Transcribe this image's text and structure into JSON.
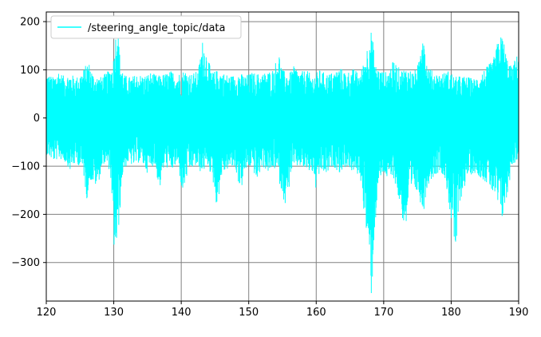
{
  "chart_data": {
    "type": "line",
    "title": "",
    "xlabel": "",
    "ylabel": "",
    "xlim": [
      120,
      190
    ],
    "ylim": [
      -380,
      220
    ],
    "x_ticks": [
      120,
      130,
      140,
      150,
      160,
      170,
      180,
      190
    ],
    "y_ticks": [
      -300,
      -200,
      -100,
      0,
      100,
      200
    ],
    "x_tick_labels": [
      "120",
      "130",
      "140",
      "150",
      "160",
      "170",
      "180",
      "190"
    ],
    "y_tick_labels": [
      "−300",
      "−200",
      "−100",
      "0",
      "100",
      "200"
    ],
    "grid": true,
    "legend_position": "top-left",
    "series": [
      {
        "name": "/steering_angle_topic/data",
        "color": "#00ffff",
        "envelope_upper": [
          [
            120.0,
            95
          ],
          [
            121.0,
            85
          ],
          [
            121.8,
            100
          ],
          [
            122.5,
            88
          ],
          [
            123.5,
            92
          ],
          [
            124.5,
            85
          ],
          [
            125.5,
            100
          ],
          [
            126.2,
            120
          ],
          [
            127.0,
            90
          ],
          [
            128.0,
            85
          ],
          [
            129.0,
            95
          ],
          [
            129.8,
            110
          ],
          [
            130.2,
            150
          ],
          [
            130.4,
            210
          ],
          [
            130.6,
            200
          ],
          [
            130.9,
            130
          ],
          [
            131.5,
            90
          ],
          [
            132.5,
            85
          ],
          [
            133.5,
            92
          ],
          [
            134.5,
            88
          ],
          [
            135.5,
            95
          ],
          [
            136.5,
            88
          ],
          [
            137.5,
            92
          ],
          [
            138.5,
            98
          ],
          [
            139.5,
            92
          ],
          [
            140.5,
            100
          ],
          [
            141.5,
            92
          ],
          [
            142.5,
            98
          ],
          [
            143.2,
            165
          ],
          [
            143.8,
            135
          ],
          [
            144.5,
            95
          ],
          [
            145.5,
            100
          ],
          [
            146.5,
            92
          ],
          [
            147.5,
            88
          ],
          [
            148.5,
            95
          ],
          [
            149.5,
            88
          ],
          [
            150.5,
            95
          ],
          [
            151.5,
            92
          ],
          [
            152.5,
            95
          ],
          [
            153.5,
            100
          ],
          [
            154.5,
            135
          ],
          [
            155.0,
            100
          ],
          [
            156.0,
            92
          ],
          [
            156.8,
            110
          ],
          [
            157.5,
            95
          ],
          [
            158.5,
            100
          ],
          [
            159.5,
            88
          ],
          [
            160.5,
            100
          ],
          [
            161.5,
            92
          ],
          [
            162.5,
            95
          ],
          [
            163.5,
            105
          ],
          [
            164.5,
            95
          ],
          [
            165.5,
            102
          ],
          [
            166.5,
            92
          ],
          [
            167.3,
            130
          ],
          [
            167.7,
            160
          ],
          [
            168.2,
            185
          ],
          [
            168.8,
            110
          ],
          [
            169.5,
            100
          ],
          [
            170.5,
            95
          ],
          [
            171.5,
            120
          ],
          [
            172.5,
            100
          ],
          [
            173.5,
            105
          ],
          [
            174.5,
            95
          ],
          [
            175.3,
            120
          ],
          [
            175.8,
            220
          ],
          [
            176.3,
            120
          ],
          [
            177.0,
            100
          ],
          [
            178.0,
            92
          ],
          [
            179.0,
            95
          ],
          [
            179.8,
            100
          ],
          [
            180.5,
            85
          ],
          [
            181.5,
            88
          ],
          [
            182.5,
            85
          ],
          [
            183.5,
            82
          ],
          [
            184.5,
            95
          ],
          [
            185.5,
            110
          ],
          [
            186.2,
            120
          ],
          [
            187.0,
            165
          ],
          [
            187.6,
            175
          ],
          [
            188.3,
            125
          ],
          [
            189.0,
            105
          ],
          [
            189.5,
            125
          ],
          [
            190.0,
            135
          ]
        ],
        "envelope_lower": [
          [
            120.0,
            -75
          ],
          [
            121.0,
            -90
          ],
          [
            122.0,
            -85
          ],
          [
            123.0,
            -95
          ],
          [
            123.5,
            -110
          ],
          [
            124.5,
            -92
          ],
          [
            125.5,
            -115
          ],
          [
            126.0,
            -170
          ],
          [
            126.5,
            -130
          ],
          [
            127.5,
            -145
          ],
          [
            128.5,
            -95
          ],
          [
            129.5,
            -110
          ],
          [
            129.9,
            -260
          ],
          [
            130.2,
            -285
          ],
          [
            130.5,
            -270
          ],
          [
            130.9,
            -200
          ],
          [
            131.3,
            -120
          ],
          [
            132.0,
            -95
          ],
          [
            133.0,
            -100
          ],
          [
            134.0,
            -90
          ],
          [
            135.0,
            -115
          ],
          [
            136.0,
            -95
          ],
          [
            136.8,
            -150
          ],
          [
            137.5,
            -100
          ],
          [
            138.5,
            -110
          ],
          [
            139.5,
            -98
          ],
          [
            140.2,
            -160
          ],
          [
            141.0,
            -115
          ],
          [
            142.0,
            -100
          ],
          [
            143.0,
            -115
          ],
          [
            144.0,
            -100
          ],
          [
            144.8,
            -140
          ],
          [
            145.3,
            -190
          ],
          [
            146.0,
            -120
          ],
          [
            147.0,
            -105
          ],
          [
            148.0,
            -105
          ],
          [
            148.8,
            -155
          ],
          [
            149.5,
            -110
          ],
          [
            150.5,
            -100
          ],
          [
            151.2,
            -135
          ],
          [
            152.0,
            -100
          ],
          [
            153.0,
            -115
          ],
          [
            154.0,
            -105
          ],
          [
            155.0,
            -160
          ],
          [
            155.6,
            -190
          ],
          [
            156.3,
            -110
          ],
          [
            157.5,
            -100
          ],
          [
            158.5,
            -110
          ],
          [
            159.5,
            -115
          ],
          [
            160.0,
            -155
          ],
          [
            160.7,
            -110
          ],
          [
            161.5,
            -120
          ],
          [
            162.5,
            -100
          ],
          [
            163.5,
            -115
          ],
          [
            164.5,
            -100
          ],
          [
            165.5,
            -115
          ],
          [
            166.5,
            -120
          ],
          [
            167.5,
            -250
          ],
          [
            167.9,
            -320
          ],
          [
            168.2,
            -378
          ],
          [
            168.6,
            -250
          ],
          [
            169.2,
            -140
          ],
          [
            170.0,
            -115
          ],
          [
            170.8,
            -135
          ],
          [
            171.5,
            -125
          ],
          [
            172.5,
            -190
          ],
          [
            173.2,
            -240
          ],
          [
            173.8,
            -175
          ],
          [
            174.5,
            -150
          ],
          [
            175.3,
            -165
          ],
          [
            175.8,
            -205
          ],
          [
            176.5,
            -140
          ],
          [
            177.5,
            -120
          ],
          [
            178.5,
            -110
          ],
          [
            179.2,
            -135
          ],
          [
            179.8,
            -195
          ],
          [
            180.3,
            -250
          ],
          [
            180.7,
            -290
          ],
          [
            181.3,
            -175
          ],
          [
            182.5,
            -120
          ],
          [
            183.5,
            -115
          ],
          [
            184.5,
            -125
          ],
          [
            185.5,
            -140
          ],
          [
            186.2,
            -160
          ],
          [
            187.0,
            -190
          ],
          [
            187.5,
            -215
          ],
          [
            188.2,
            -175
          ],
          [
            189.0,
            -100
          ],
          [
            190.0,
            -85
          ]
        ]
      }
    ]
  }
}
